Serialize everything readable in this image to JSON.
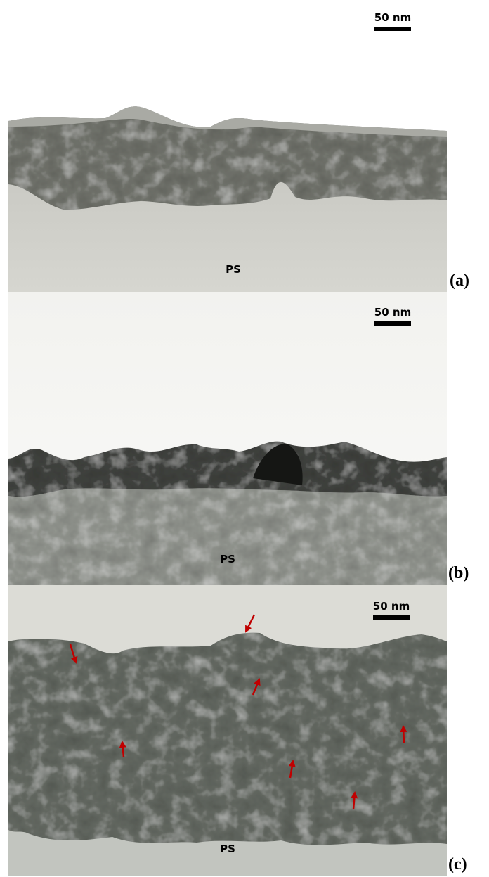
{
  "panels": [
    {
      "scale_bar": "50 nm",
      "substrate": "PS",
      "label": "(a)"
    },
    {
      "scale_bar": "50 nm",
      "substrate": "PS",
      "label": "(b)"
    },
    {
      "scale_bar": "50 nm",
      "substrate": "PS",
      "label": "(c)"
    }
  ]
}
